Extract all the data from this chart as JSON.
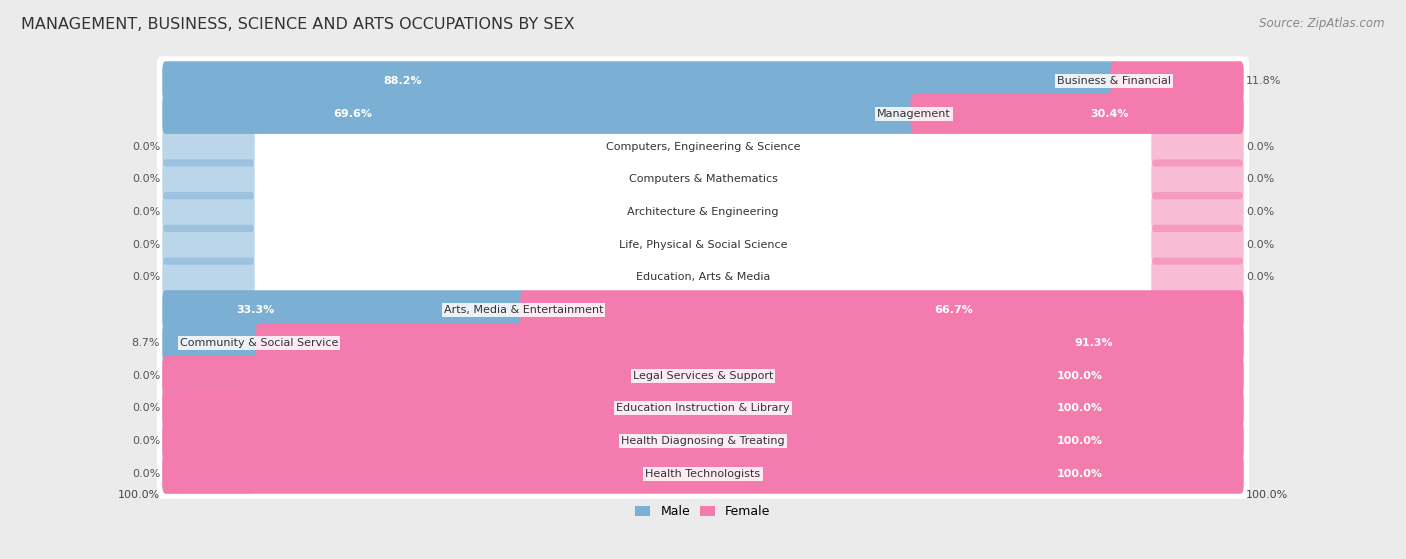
{
  "title": "MANAGEMENT, BUSINESS, SCIENCE AND ARTS OCCUPATIONS BY SEX",
  "source": "Source: ZipAtlas.com",
  "categories": [
    "Business & Financial",
    "Management",
    "Computers, Engineering & Science",
    "Computers & Mathematics",
    "Architecture & Engineering",
    "Life, Physical & Social Science",
    "Education, Arts & Media",
    "Arts, Media & Entertainment",
    "Community & Social Service",
    "Legal Services & Support",
    "Education Instruction & Library",
    "Health Diagnosing & Treating",
    "Health Technologists"
  ],
  "male": [
    88.2,
    69.6,
    0.0,
    0.0,
    0.0,
    0.0,
    0.0,
    33.3,
    8.7,
    0.0,
    0.0,
    0.0,
    0.0
  ],
  "female": [
    11.8,
    30.4,
    0.0,
    0.0,
    0.0,
    0.0,
    0.0,
    66.7,
    91.3,
    100.0,
    100.0,
    100.0,
    100.0
  ],
  "male_color": "#7bafd4",
  "female_color": "#f47bad",
  "male_label": "Male",
  "female_label": "Female",
  "bg_color": "#ebebeb",
  "row_bg_color": "#ffffff",
  "bar_height": 0.62,
  "title_fontsize": 11.5,
  "source_fontsize": 8.5,
  "label_fontsize": 8.0,
  "category_fontsize": 8.0,
  "zero_stub": 8.0
}
